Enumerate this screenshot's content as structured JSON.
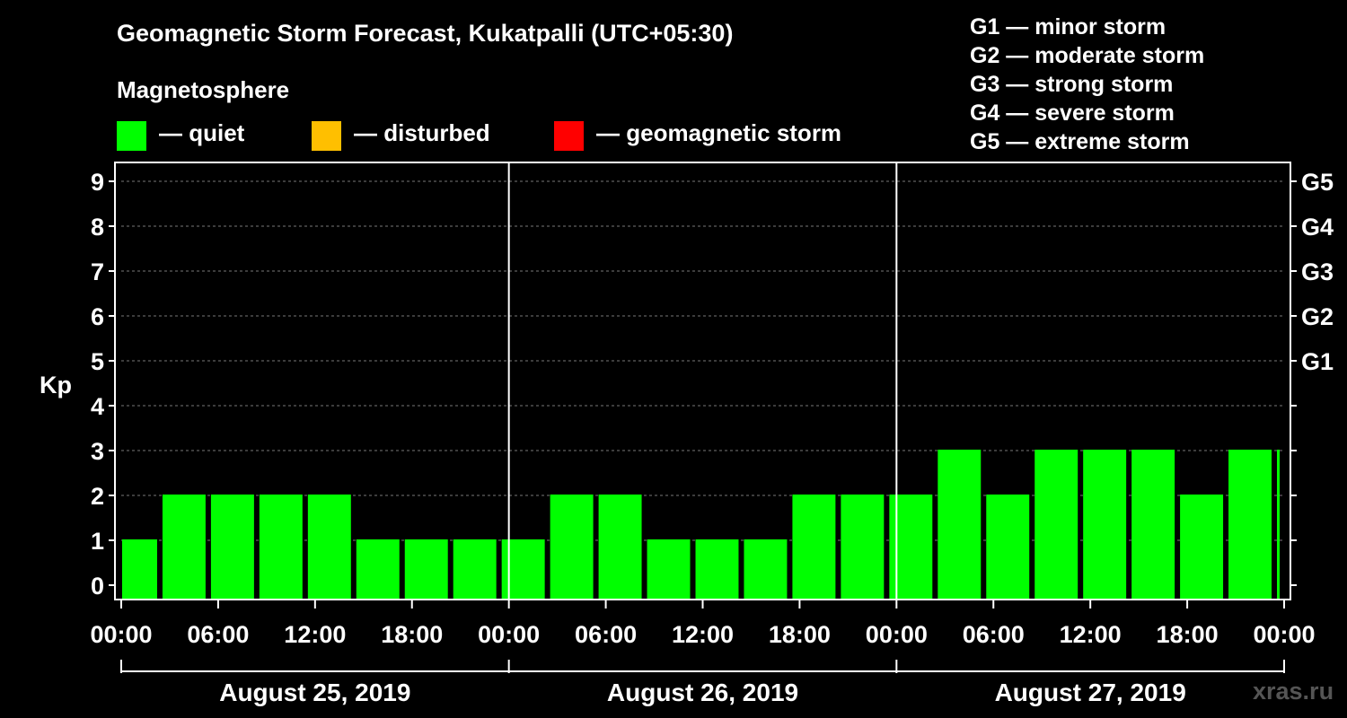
{
  "title": "Geomagnetic Storm Forecast, Kukatpalli (UTC+05:30)",
  "subtitle": "Magnetosphere",
  "legend": [
    {
      "label": "— quiet",
      "color": "#00ff00"
    },
    {
      "label": "— disturbed",
      "color": "#ffbf00"
    },
    {
      "label": "— geomagnetic storm",
      "color": "#ff0000"
    }
  ],
  "g_levels": [
    "G1 — minor storm",
    "G2 — moderate storm",
    "G3 — strong storm",
    "G4 — severe storm",
    "G5 — extreme storm"
  ],
  "watermark": "xras.ru",
  "chart_data": {
    "type": "bar",
    "ylabel": "Kp",
    "ylim": [
      0,
      9
    ],
    "y_ticks": [
      "0",
      "1",
      "2",
      "3",
      "4",
      "5",
      "6",
      "7",
      "8",
      "9"
    ],
    "right_axis_labels": [
      {
        "kp": 5,
        "label": "G1"
      },
      {
        "kp": 6,
        "label": "G2"
      },
      {
        "kp": 7,
        "label": "G3"
      },
      {
        "kp": 8,
        "label": "G4"
      },
      {
        "kp": 9,
        "label": "G5"
      }
    ],
    "x_tick_labels": [
      "00:00",
      "06:00",
      "12:00",
      "18:00",
      "00:00",
      "06:00",
      "12:00",
      "18:00",
      "00:00",
      "06:00",
      "12:00",
      "18:00",
      "00:00"
    ],
    "days": [
      "August 25, 2019",
      "August 26, 2019",
      "August 27, 2019"
    ],
    "grid": "dashed horizontal",
    "legend_position": "top",
    "series": [
      {
        "values": [
          {
            "start": "2019-08-25 00:00",
            "end": "2019-08-25 02:30",
            "kp": 1
          },
          {
            "start": "2019-08-25 02:30",
            "end": "2019-08-25 05:30",
            "kp": 2
          },
          {
            "start": "2019-08-25 05:30",
            "end": "2019-08-25 08:30",
            "kp": 2
          },
          {
            "start": "2019-08-25 08:30",
            "end": "2019-08-25 11:30",
            "kp": 2
          },
          {
            "start": "2019-08-25 11:30",
            "end": "2019-08-25 14:30",
            "kp": 2
          },
          {
            "start": "2019-08-25 14:30",
            "end": "2019-08-25 17:30",
            "kp": 1
          },
          {
            "start": "2019-08-25 17:30",
            "end": "2019-08-25 20:30",
            "kp": 1
          },
          {
            "start": "2019-08-25 20:30",
            "end": "2019-08-25 23:30",
            "kp": 1
          },
          {
            "start": "2019-08-25 23:30",
            "end": "2019-08-26 02:30",
            "kp": 1
          },
          {
            "start": "2019-08-26 02:30",
            "end": "2019-08-26 05:30",
            "kp": 2
          },
          {
            "start": "2019-08-26 05:30",
            "end": "2019-08-26 08:30",
            "kp": 2
          },
          {
            "start": "2019-08-26 08:30",
            "end": "2019-08-26 11:30",
            "kp": 1
          },
          {
            "start": "2019-08-26 11:30",
            "end": "2019-08-26 14:30",
            "kp": 1
          },
          {
            "start": "2019-08-26 14:30",
            "end": "2019-08-26 17:30",
            "kp": 1
          },
          {
            "start": "2019-08-26 17:30",
            "end": "2019-08-26 20:30",
            "kp": 2
          },
          {
            "start": "2019-08-26 20:30",
            "end": "2019-08-26 23:30",
            "kp": 2
          },
          {
            "start": "2019-08-26 23:30",
            "end": "2019-08-27 02:30",
            "kp": 2
          },
          {
            "start": "2019-08-27 02:30",
            "end": "2019-08-27 05:30",
            "kp": 3
          },
          {
            "start": "2019-08-27 05:30",
            "end": "2019-08-27 08:30",
            "kp": 2
          },
          {
            "start": "2019-08-27 08:30",
            "end": "2019-08-27 11:30",
            "kp": 3
          },
          {
            "start": "2019-08-27 11:30",
            "end": "2019-08-27 14:30",
            "kp": 3
          },
          {
            "start": "2019-08-27 14:30",
            "end": "2019-08-27 17:30",
            "kp": 3
          },
          {
            "start": "2019-08-27 17:30",
            "end": "2019-08-27 20:30",
            "kp": 2
          },
          {
            "start": "2019-08-27 20:30",
            "end": "2019-08-27 23:30",
            "kp": 3
          },
          {
            "start": "2019-08-27 23:30",
            "end": "2019-08-28 00:00",
            "kp": 3
          }
        ]
      }
    ]
  }
}
